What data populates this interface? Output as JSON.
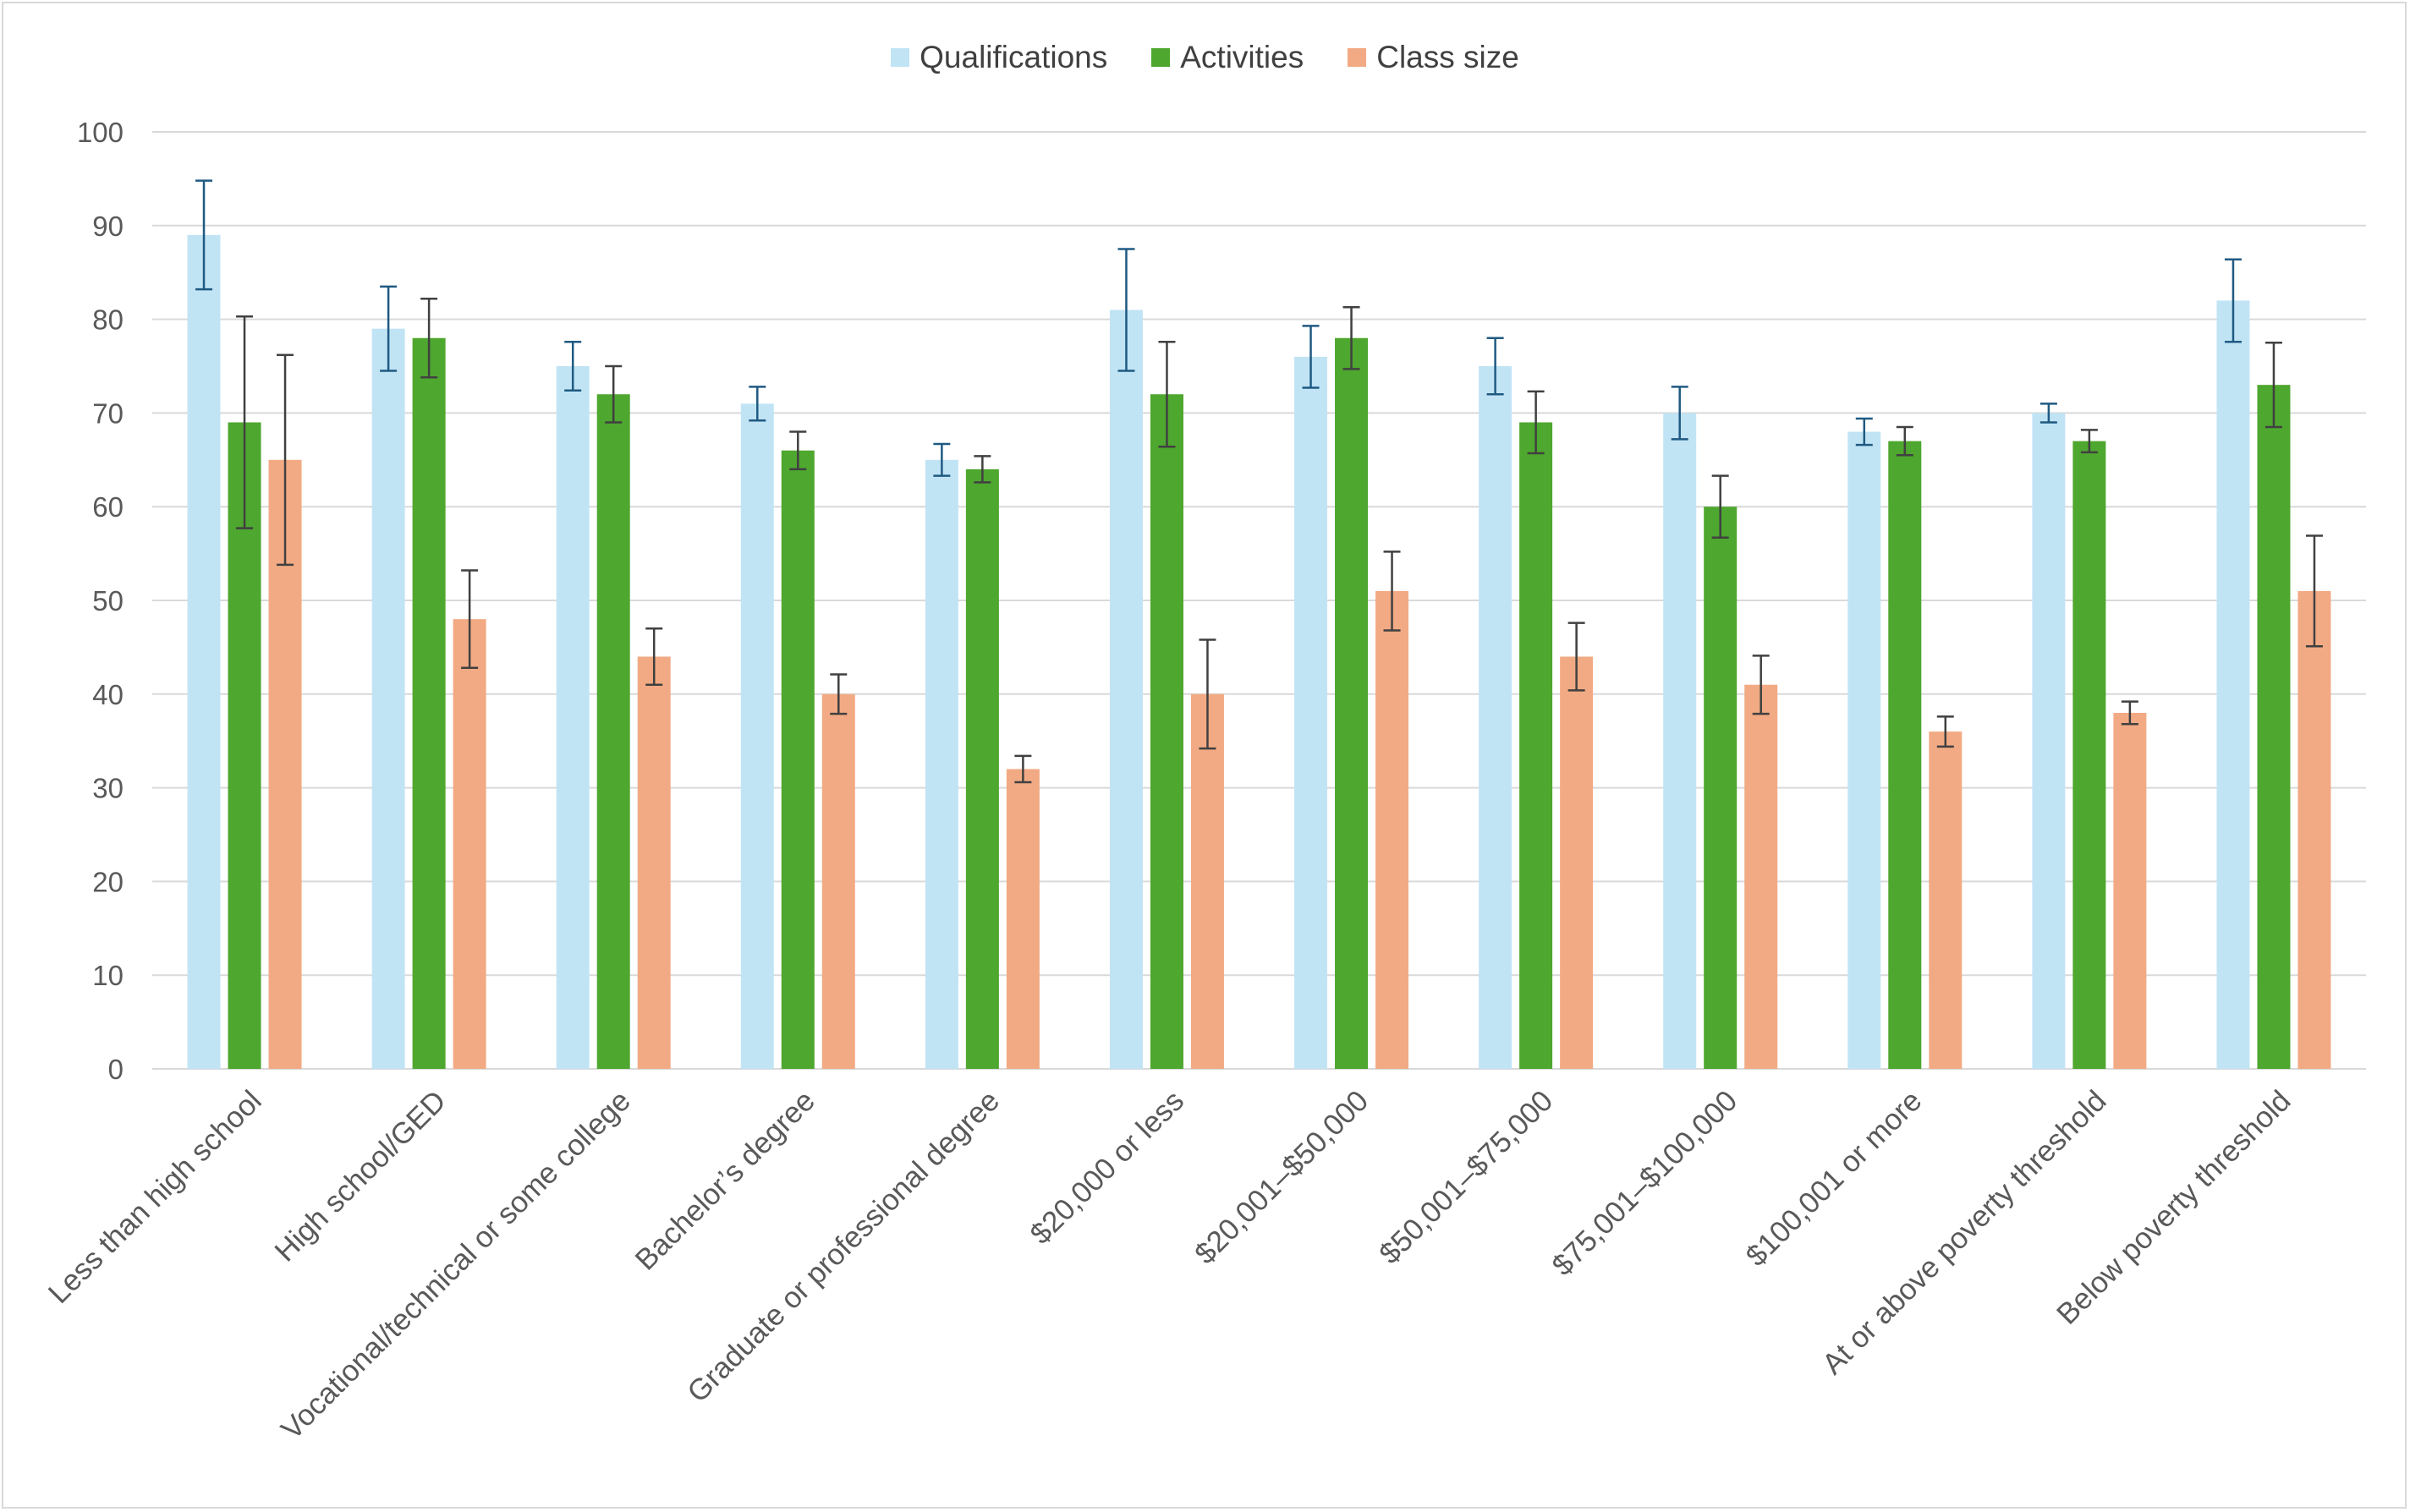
{
  "chart_data": {
    "type": "bar",
    "title": "",
    "xlabel": "",
    "ylabel": "",
    "ylim": [
      0,
      100
    ],
    "yticks": [
      0,
      10,
      20,
      30,
      40,
      50,
      60,
      70,
      80,
      90,
      100
    ],
    "grid": true,
    "legend_position": "top-center",
    "categories": [
      "Less than high school",
      "High school/GED",
      "Vocational/technical or some college",
      "Bachelor’s degree",
      "Graduate or professional degree",
      "$20,000 or less",
      "$20,001–$50,000",
      "$50,001–$75,000",
      "$75,001–$100,000",
      "$100,001 or more",
      "At or above poverty threshold",
      "Below poverty threshold"
    ],
    "series": [
      {
        "name": "Qualifications",
        "color": "#c1e4f5",
        "error_color": "#1f5a82",
        "values": [
          89,
          79,
          75,
          71,
          65,
          81,
          76,
          75,
          70,
          68,
          70,
          82
        ],
        "error": [
          5.8,
          4.5,
          2.6,
          1.8,
          1.7,
          6.5,
          3.3,
          3.0,
          2.8,
          1.4,
          1.0,
          4.4
        ]
      },
      {
        "name": "Activities",
        "color": "#4ea72e",
        "error_color": "#404040",
        "values": [
          69,
          78,
          72,
          66,
          64,
          72,
          78,
          69,
          60,
          67,
          67,
          73
        ],
        "error": [
          11.3,
          4.2,
          3.0,
          2.0,
          1.4,
          5.6,
          3.3,
          3.3,
          3.3,
          1.5,
          1.2,
          4.5
        ]
      },
      {
        "name": "Class size",
        "color": "#f2aa84",
        "error_color": "#404040",
        "values": [
          65,
          48,
          44,
          40,
          32,
          40,
          51,
          44,
          41,
          36,
          38,
          51
        ],
        "error": [
          11.2,
          5.2,
          3.0,
          2.1,
          1.4,
          5.8,
          4.2,
          3.6,
          3.1,
          1.6,
          1.2,
          5.9
        ]
      }
    ]
  }
}
